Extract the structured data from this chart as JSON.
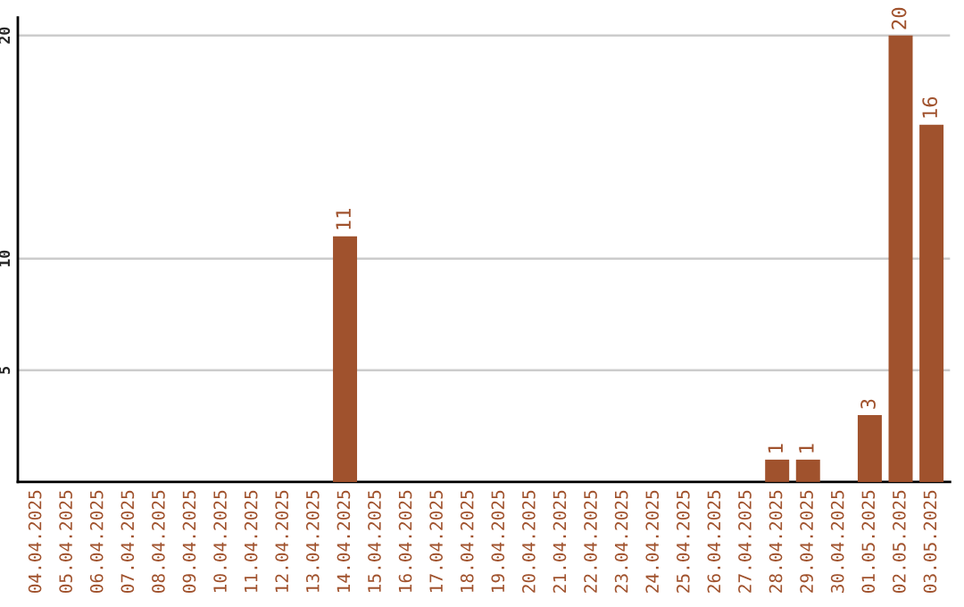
{
  "chart_data": {
    "type": "bar",
    "categories": [
      "04.04.2025",
      "05.04.2025",
      "06.04.2025",
      "07.04.2025",
      "08.04.2025",
      "09.04.2025",
      "10.04.2025",
      "11.04.2025",
      "12.04.2025",
      "13.04.2025",
      "14.04.2025",
      "15.04.2025",
      "16.04.2025",
      "17.04.2025",
      "18.04.2025",
      "19.04.2025",
      "20.04.2025",
      "21.04.2025",
      "22.04.2025",
      "23.04.2025",
      "24.04.2025",
      "25.04.2025",
      "26.04.2025",
      "27.04.2025",
      "28.04.2025",
      "29.04.2025",
      "30.04.2025",
      "01.05.2025",
      "02.05.2025",
      "03.05.2025"
    ],
    "values": [
      0,
      0,
      0,
      0,
      0,
      0,
      0,
      0,
      0,
      0,
      11,
      0,
      0,
      0,
      0,
      0,
      0,
      0,
      0,
      0,
      0,
      0,
      0,
      0,
      1,
      1,
      0,
      3,
      20,
      16
    ],
    "value_labels": [
      null,
      null,
      null,
      null,
      null,
      null,
      null,
      null,
      null,
      null,
      "11",
      null,
      null,
      null,
      null,
      null,
      null,
      null,
      null,
      null,
      null,
      null,
      null,
      null,
      "1",
      "1",
      null,
      "3",
      "20",
      "16"
    ],
    "color": "#a0522d",
    "ylim": [
      0,
      20.8
    ],
    "yticks": [
      5,
      10,
      20
    ],
    "grid": "y"
  }
}
